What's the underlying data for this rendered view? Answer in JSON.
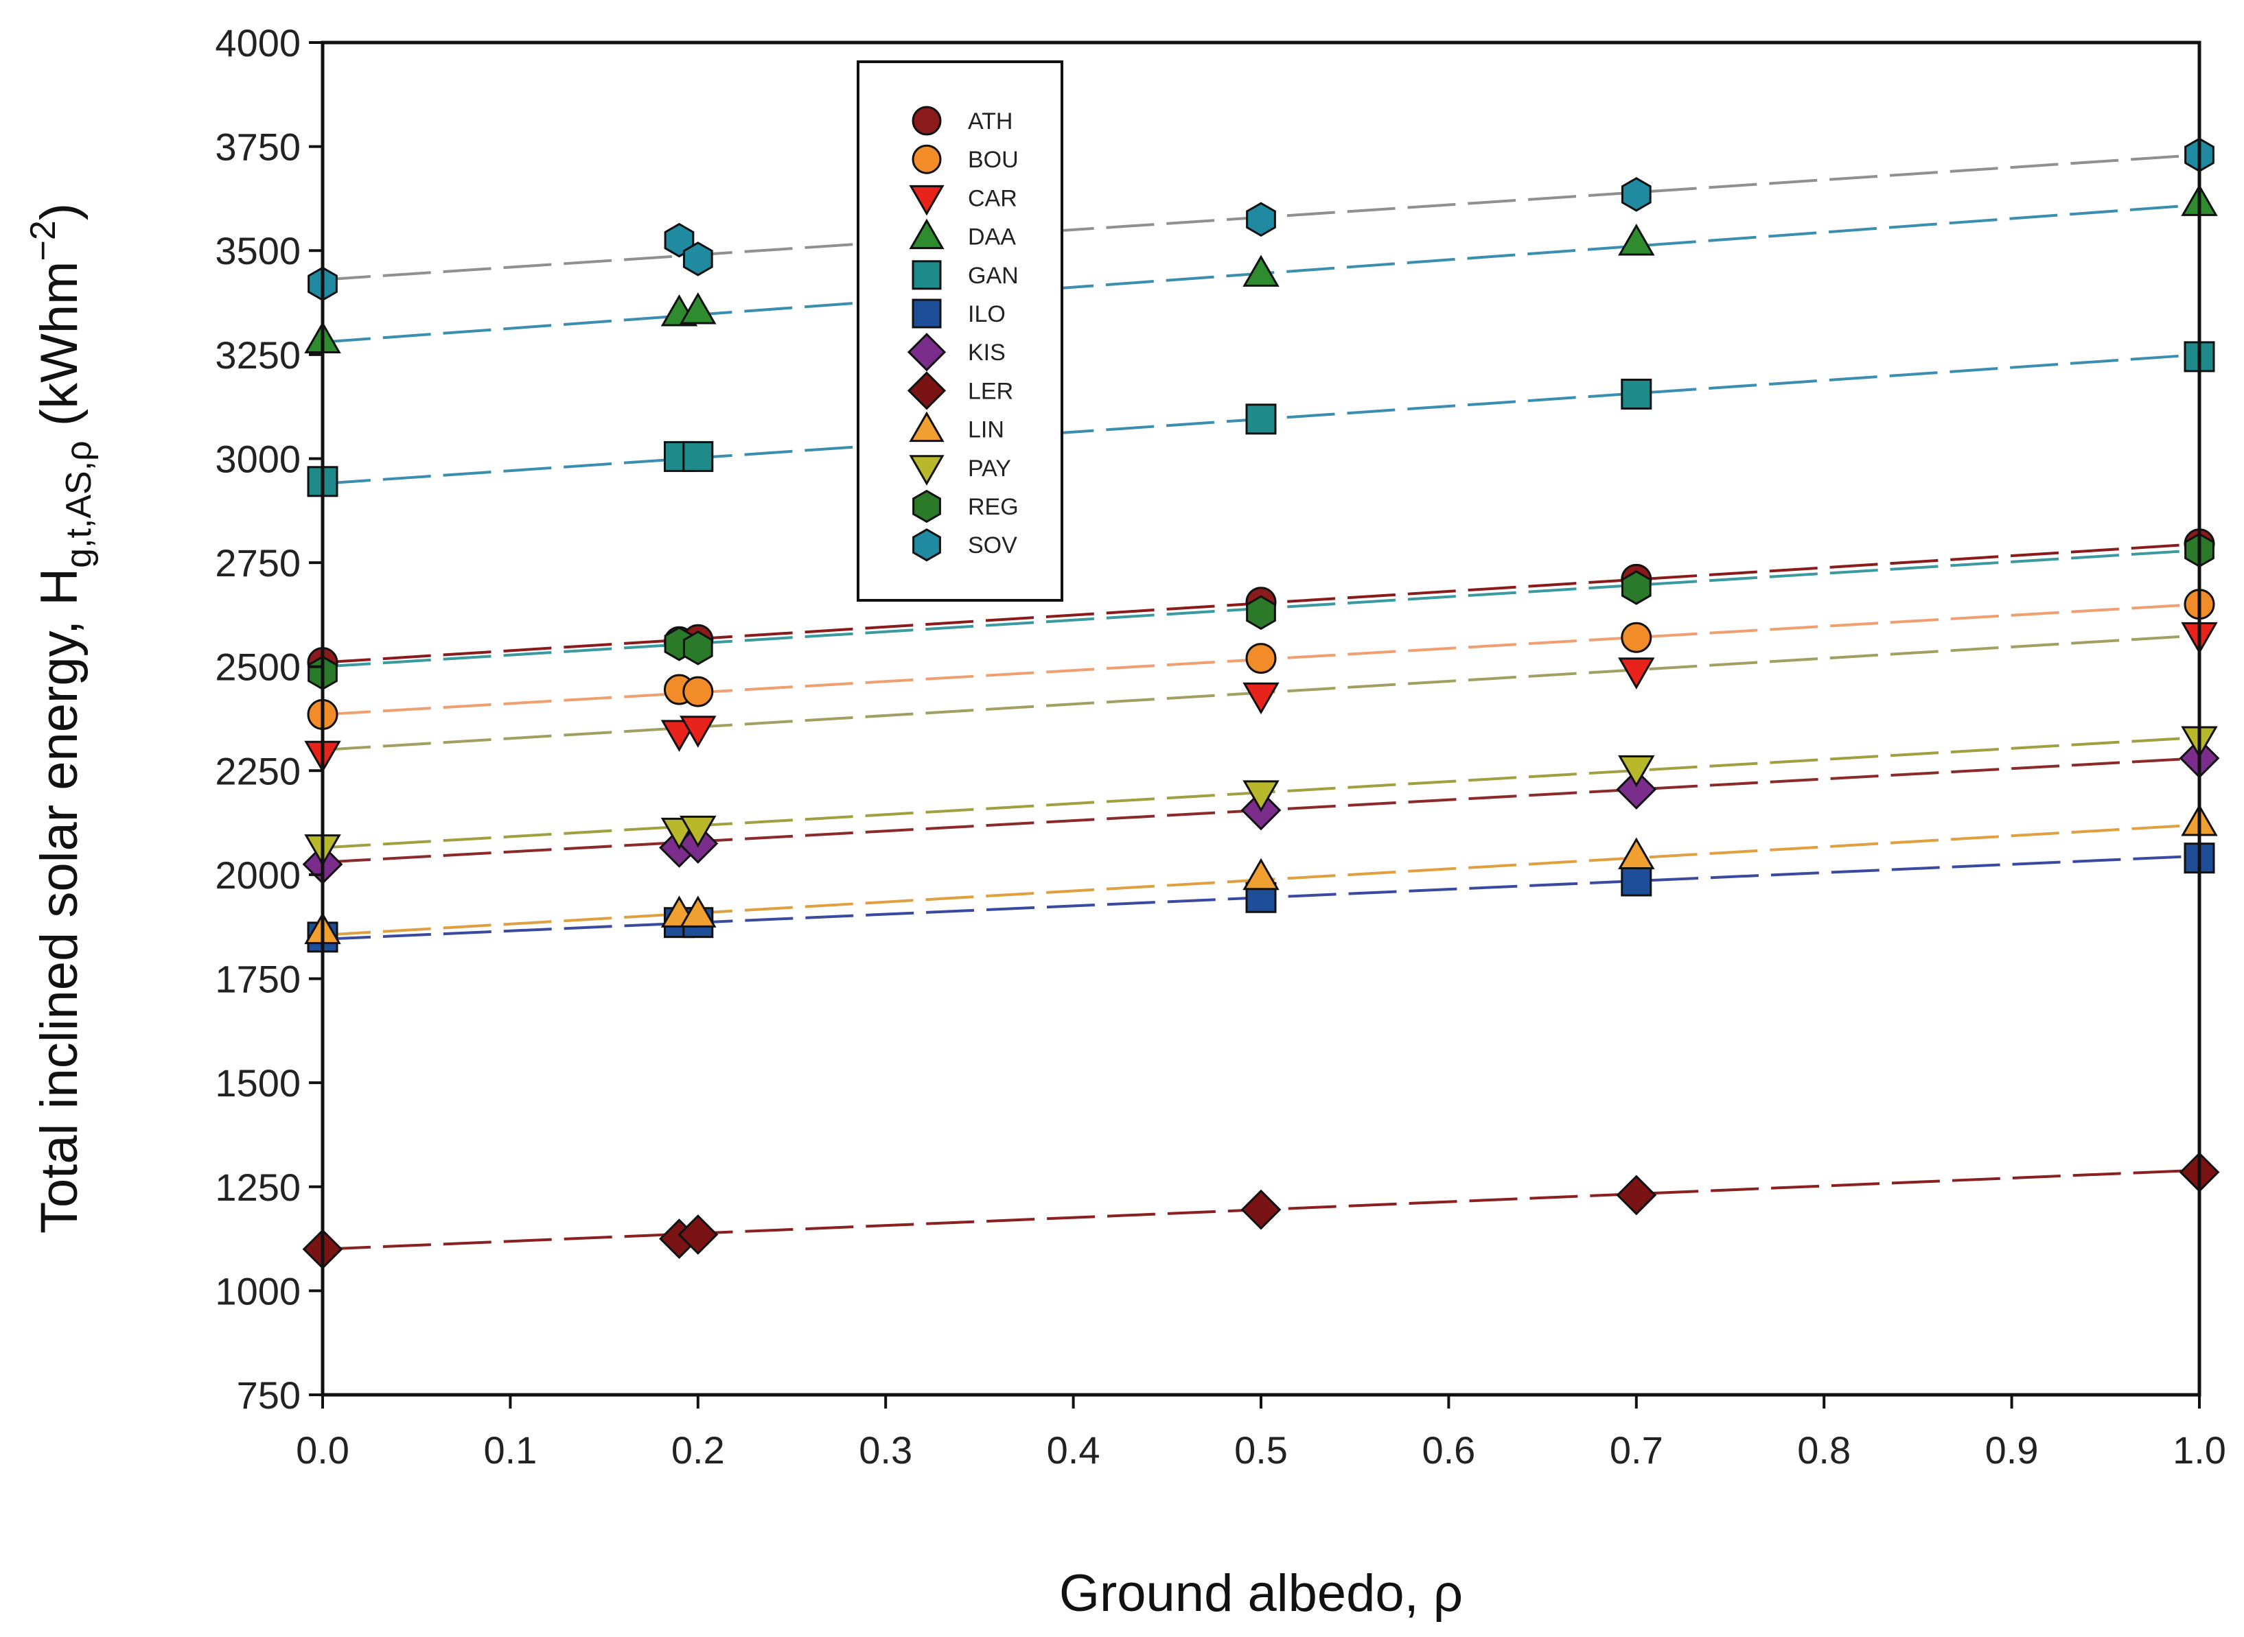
{
  "chart_data": {
    "type": "scatter",
    "xlabel": "Ground albedo, ρ",
    "ylabel": {
      "main": "Total inclined solar energy, H",
      "subscript": "g,t,AS,ρ",
      "unit_open": " (kWhm",
      "unit_sup": "−2",
      "unit_close": ")"
    },
    "xlim": [
      0,
      1
    ],
    "ylim": [
      750,
      4000
    ],
    "x_ticks": [
      "0.0",
      "0.1",
      "0.2",
      "0.3",
      "0.4",
      "0.5",
      "0.6",
      "0.7",
      "0.8",
      "0.9",
      "1.0"
    ],
    "y_ticks": [
      "750",
      "1000",
      "1250",
      "1500",
      "1750",
      "2000",
      "2250",
      "2500",
      "2750",
      "3000",
      "3250",
      "3500",
      "3750",
      "4000"
    ],
    "x": [
      0.0,
      0.19,
      0.2,
      0.5,
      0.7,
      1.0
    ],
    "legend_position": "top-left-center",
    "series": [
      {
        "name": "ATH",
        "marker": "circle",
        "color": "#8b1a1a",
        "line_color": "#8b1a1a",
        "values": [
          2510,
          2560,
          2565,
          2655,
          2710,
          2795
        ],
        "fit": [
          2510,
          2795
        ]
      },
      {
        "name": "BOU",
        "marker": "circle",
        "color": "#f28c28",
        "line_color": "#f0a070",
        "values": [
          2385,
          2445,
          2440,
          2520,
          2570,
          2650
        ],
        "fit": [
          2385,
          2650
        ]
      },
      {
        "name": "CAR",
        "marker": "triangle-down",
        "color": "#e8231c",
        "line_color": "#a0a060",
        "values": [
          2290,
          2340,
          2350,
          2430,
          2490,
          2575
        ],
        "fit": [
          2300,
          2575
        ]
      },
      {
        "name": "DAA",
        "marker": "triangle-up",
        "color": "#2e8b2e",
        "line_color": "#3a8fb0",
        "values": [
          3285,
          3350,
          3355,
          3445,
          3520,
          3615
        ],
        "fit": [
          3280,
          3610
        ]
      },
      {
        "name": "GAN",
        "marker": "square",
        "color": "#1f8a8a",
        "line_color": "#3a8fb0",
        "values": [
          2945,
          3005,
          3005,
          3095,
          3155,
          3245
        ],
        "fit": [
          2940,
          3250
        ]
      },
      {
        "name": "ILO",
        "marker": "square",
        "color": "#1f4e99",
        "line_color": "#3a4aa0",
        "values": [
          1850,
          1885,
          1885,
          1945,
          1985,
          2040
        ],
        "fit": [
          1845,
          2045
        ]
      },
      {
        "name": "KIS",
        "marker": "diamond",
        "color": "#7b2d8b",
        "line_color": "#8b2a2a",
        "values": [
          2025,
          2065,
          2075,
          2155,
          2205,
          2280
        ],
        "fit": [
          2030,
          2280
        ]
      },
      {
        "name": "LER",
        "marker": "diamond",
        "color": "#7a1414",
        "line_color": "#8b2020",
        "values": [
          1100,
          1125,
          1135,
          1195,
          1230,
          1285
        ],
        "fit": [
          1100,
          1290
        ]
      },
      {
        "name": "LIN",
        "marker": "triangle-up",
        "color": "#f0a030",
        "line_color": "#e0a040",
        "values": [
          1865,
          1905,
          1905,
          1995,
          2045,
          2125
        ],
        "fit": [
          1855,
          2120
        ]
      },
      {
        "name": "PAY",
        "marker": "triangle-down",
        "color": "#b8b82a",
        "line_color": "#a0a040",
        "values": [
          2065,
          2105,
          2110,
          2195,
          2255,
          2325
        ],
        "fit": [
          2065,
          2330
        ]
      },
      {
        "name": "REG",
        "marker": "hexagon",
        "color": "#2a7a2a",
        "line_color": "#3a9aa0",
        "values": [
          2485,
          2555,
          2545,
          2630,
          2690,
          2780
        ],
        "fit": [
          2500,
          2780
        ]
      },
      {
        "name": "SOV",
        "marker": "hexagon",
        "color": "#1f8aa0",
        "line_color": "#909090",
        "values": [
          3420,
          3525,
          3480,
          3575,
          3635,
          3730
        ],
        "fit": [
          3430,
          3730
        ]
      }
    ]
  }
}
